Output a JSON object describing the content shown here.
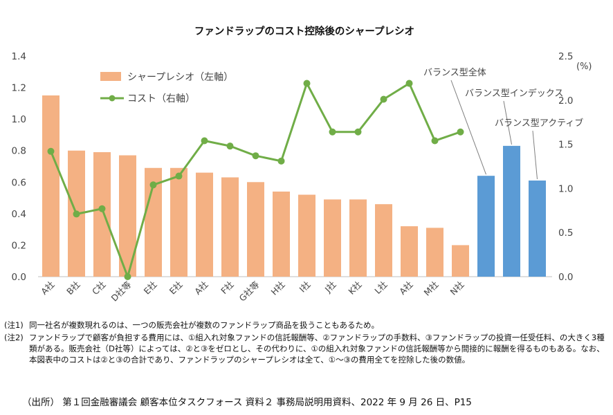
{
  "chart_data": {
    "type": "bar+line",
    "title": "ファンドラップのコスト控除後のシャープレシオ",
    "categories": [
      "A社",
      "B社",
      "C社",
      "D社等",
      "E社",
      "E社",
      "A社",
      "F社",
      "G社等",
      "H社",
      "I社",
      "J社",
      "K社",
      "L社",
      "A社",
      "M社",
      "N社",
      "",
      "",
      ""
    ],
    "series": [
      {
        "name": "シャープレシオ（左軸）",
        "axis": "left",
        "type": "bar",
        "color": "#F4B183",
        "values": [
          1.15,
          0.8,
          0.79,
          0.77,
          0.69,
          0.69,
          0.66,
          0.63,
          0.6,
          0.54,
          0.52,
          0.49,
          0.49,
          0.46,
          0.32,
          0.31,
          0.2,
          null,
          null,
          null
        ]
      },
      {
        "name": "",
        "axis": "left",
        "type": "bar",
        "color": "#5B9BD5",
        "values": [
          null,
          null,
          null,
          null,
          null,
          null,
          null,
          null,
          null,
          null,
          null,
          null,
          null,
          null,
          null,
          null,
          null,
          0.64,
          0.83,
          0.61
        ]
      },
      {
        "name": "コスト（右軸）",
        "axis": "right",
        "type": "line",
        "color": "#70AD47",
        "values": [
          1.42,
          0.71,
          0.77,
          0.0,
          1.04,
          1.14,
          1.54,
          1.48,
          1.37,
          1.31,
          2.19,
          1.64,
          1.64,
          2.01,
          2.19,
          1.54,
          1.64,
          null,
          null,
          null
        ]
      }
    ],
    "left_axis": {
      "min": 0,
      "max": 1.4,
      "ticks": [
        "0.0",
        "0.2",
        "0.4",
        "0.6",
        "0.8",
        "1.0",
        "1.2",
        "1.4"
      ]
    },
    "right_axis": {
      "min": 0,
      "max": 2.5,
      "unit": "(%)",
      "ticks": [
        "0.0",
        "0.5",
        "1.0",
        "1.5",
        "2.0",
        "2.5"
      ]
    },
    "annotations": [
      "バランス型全体",
      "バランス型インデックス",
      "バランス型アクティブ"
    ],
    "legend_position": "top-left",
    "grid": false
  },
  "notes": [
    {
      "label": "(注1)",
      "text": "同一社名が複数現れるのは、一つの販売会社が複数のファンドラップ商品を扱うこともあるため。"
    },
    {
      "label": "(注2)",
      "text": "ファンドラップで顧客が負担する費用には、①組入れ対象ファンドの信託報酬等、②ファンドラップの手数料、③ファンドラップの投資一任受任料、の大きく3種類がある。販売会社（D社等）によっては、②と③をゼロとし、その代わりに、①の組入れ対象ファンドの信託報酬等から間接的に報酬を得るものもある。なお、本図表中のコストは②と③の合計であり、ファンドラップのシャープレシオは全て、①～③の費用全てを控除した後の数値。"
    }
  ],
  "source": "（出所） 第１回金融審議会 顧客本位タスクフォース 資料２ 事務局説明用資料、2022 年 9 月 26 日、P15"
}
